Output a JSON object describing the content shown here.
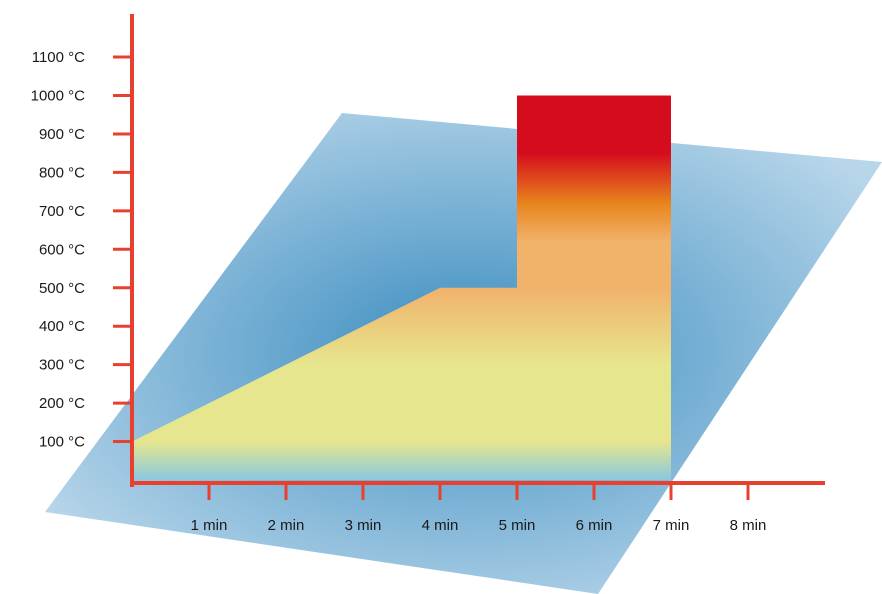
{
  "chart_data": {
    "type": "area",
    "title": "",
    "xlabel": "",
    "ylabel": "",
    "x_ticks": [
      "1 min",
      "2 min",
      "3 min",
      "4 min",
      "5 min",
      "6 min",
      "7 min",
      "8 min"
    ],
    "y_ticks": [
      "100 °C",
      "200 °C",
      "300 °C",
      "400 °C",
      "500 °C",
      "600 °C",
      "700 °C",
      "800 °C",
      "900 °C",
      "1000 °C",
      "1100 °C"
    ],
    "xlim": [
      0,
      9
    ],
    "ylim": [
      0,
      1200
    ],
    "series": [
      {
        "x": [
          0,
          4,
          5,
          5,
          7,
          7
        ],
        "y": [
          100,
          500,
          500,
          1000,
          1000,
          0
        ]
      }
    ],
    "grid": false,
    "legend": "none",
    "colors": {
      "axis": "#e8402e",
      "plane_light": "#b8d6ea",
      "plane_dark": "#3a8cc0",
      "fill_low": "#8ac8e0",
      "fill_mid": "#e6e68e",
      "fill_warm": "#f1b26a",
      "fill_orange": "#e8841c",
      "fill_hot": "#d50c1e"
    }
  }
}
